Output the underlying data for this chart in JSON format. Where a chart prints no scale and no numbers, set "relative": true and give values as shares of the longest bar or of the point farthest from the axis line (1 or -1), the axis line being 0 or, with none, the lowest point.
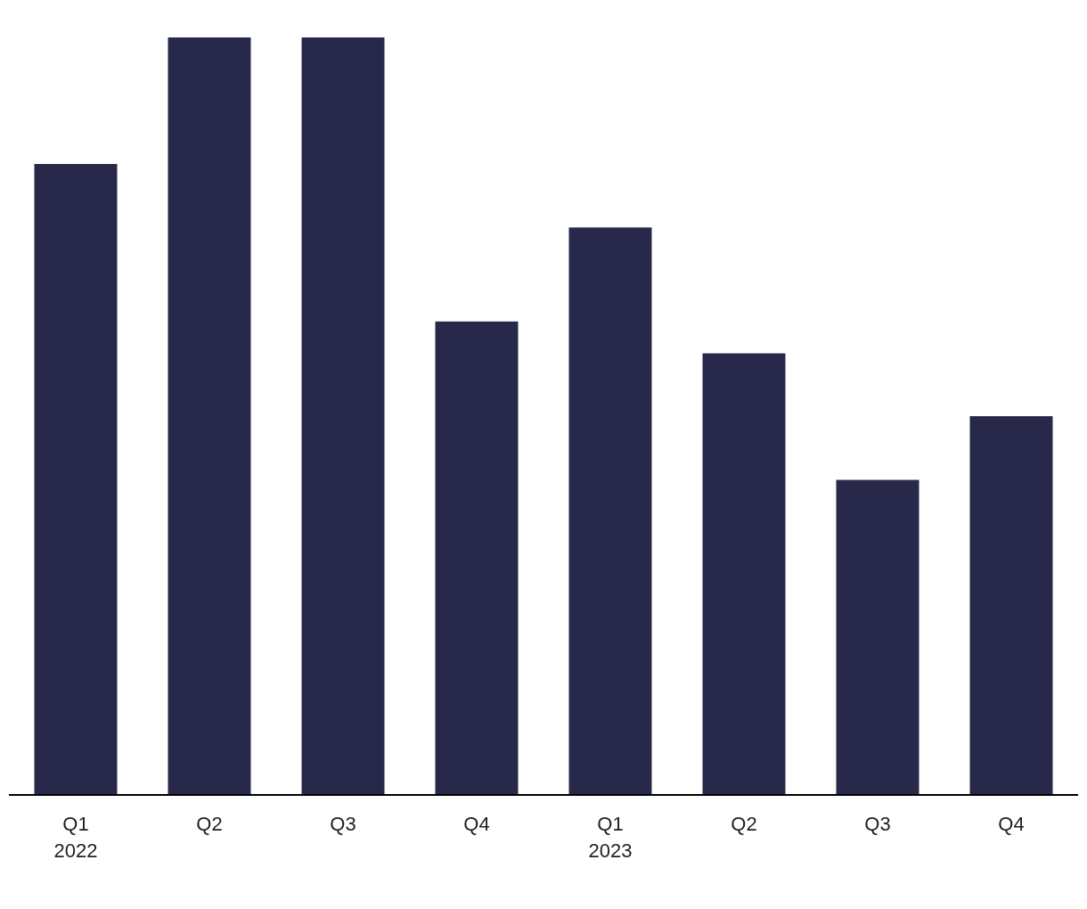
{
  "chart_data": {
    "type": "bar",
    "relative": true,
    "categories": [
      "Q1\n2022",
      "Q2",
      "Q3",
      "Q4",
      "Q1\n2023",
      "Q2",
      "Q3",
      "Q4"
    ],
    "values": [
      0.833,
      1,
      1,
      0.625,
      0.749,
      0.583,
      0.416,
      0.5
    ],
    "color": "#28284a",
    "grid": false,
    "legend": false
  }
}
